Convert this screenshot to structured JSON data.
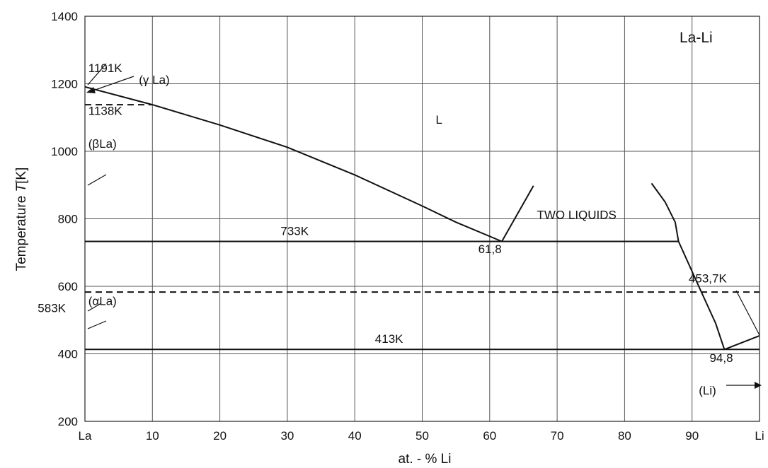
{
  "chart_data": {
    "type": "line",
    "title": "La-Li",
    "xlabel": "at. - % Li",
    "ylabel": "Temperature T[K]",
    "ylabel_prefix": "Temperature ",
    "ylabel_var": "T",
    "ylabel_unit": "[K]",
    "xlim": [
      0,
      100
    ],
    "ylim": [
      200,
      1400
    ],
    "grid": true,
    "x_ticks": [
      {
        "value": 0,
        "label": "La"
      },
      {
        "value": 10,
        "label": "10"
      },
      {
        "value": 20,
        "label": "20"
      },
      {
        "value": 30,
        "label": "30"
      },
      {
        "value": 40,
        "label": "40"
      },
      {
        "value": 50,
        "label": "50"
      },
      {
        "value": 60,
        "label": "60"
      },
      {
        "value": 70,
        "label": "70"
      },
      {
        "value": 80,
        "label": "80"
      },
      {
        "value": 90,
        "label": "90"
      },
      {
        "value": 100,
        "label": "Li"
      }
    ],
    "y_ticks": [
      {
        "value": 200,
        "label": "200"
      },
      {
        "value": 400,
        "label": "400"
      },
      {
        "value": 600,
        "label": "600"
      },
      {
        "value": 800,
        "label": "800"
      },
      {
        "value": 1000,
        "label": "1000"
      },
      {
        "value": 1200,
        "label": "1200"
      },
      {
        "value": 1400,
        "label": "1400"
      }
    ],
    "lines": [
      {
        "id": "liquidus-la-side",
        "style": "solid",
        "points": [
          [
            0,
            1191
          ],
          [
            10,
            1138
          ],
          [
            20,
            1078
          ],
          [
            30,
            1012
          ],
          [
            40,
            930
          ],
          [
            50,
            838
          ],
          [
            55,
            790
          ],
          [
            61.8,
            733
          ]
        ]
      },
      {
        "id": "miscibility-gap-left",
        "style": "solid",
        "points": [
          [
            61.8,
            733
          ],
          [
            66.5,
            898
          ]
        ]
      },
      {
        "id": "miscibility-gap-right",
        "style": "solid",
        "points": [
          [
            84,
            905
          ],
          [
            86,
            850
          ],
          [
            87.5,
            790
          ],
          [
            88,
            733
          ]
        ]
      },
      {
        "id": "liquidus-li-side",
        "style": "solid",
        "points": [
          [
            88,
            733
          ],
          [
            91,
            600
          ],
          [
            93.5,
            490
          ],
          [
            94.8,
            413
          ]
        ]
      },
      {
        "id": "li-liquidus",
        "style": "solid",
        "points": [
          [
            94.8,
            413
          ],
          [
            100,
            453.7
          ]
        ]
      },
      {
        "id": "monotectic-733K",
        "style": "solid",
        "points": [
          [
            0,
            733
          ],
          [
            88,
            733
          ]
        ]
      },
      {
        "id": "eutectic-413K",
        "style": "solid",
        "points": [
          [
            0,
            413
          ],
          [
            100,
            413
          ]
        ]
      },
      {
        "id": "transition-1138K",
        "style": "dashed",
        "points": [
          [
            0,
            1138
          ],
          [
            10,
            1138
          ]
        ]
      },
      {
        "id": "transition-583K",
        "style": "dashed",
        "points": [
          [
            0,
            583
          ],
          [
            100,
            583
          ]
        ]
      }
    ],
    "annotations": [
      {
        "id": "label-1191K",
        "text": "1191K",
        "x": 0.5,
        "y": 1235
      },
      {
        "id": "label-gamma-la",
        "text": "(γ La)",
        "x": 8,
        "y": 1200
      },
      {
        "id": "label-1138K",
        "text": "1138K",
        "x": 0.5,
        "y": 1108
      },
      {
        "id": "label-L",
        "text": "L",
        "x": 52,
        "y": 1082
      },
      {
        "id": "label-beta-la",
        "text": "(βLa)",
        "x": 0.5,
        "y": 1010
      },
      {
        "id": "label-two-liquids",
        "text": "TWO LIQUIDS",
        "x": 67,
        "y": 800
      },
      {
        "id": "label-733K",
        "text": "733K",
        "x": 29,
        "y": 752
      },
      {
        "id": "label-61-8",
        "text": "61,8",
        "x": 58.3,
        "y": 698
      },
      {
        "id": "label-453-7K",
        "text": "453,7K",
        "x": 89.5,
        "y": 612
      },
      {
        "id": "label-583K",
        "text": "583K",
        "x": -7,
        "y": 524
      },
      {
        "id": "label-alpha-la",
        "text": "(αLa)",
        "x": 0.5,
        "y": 544
      },
      {
        "id": "label-413K",
        "text": "413K",
        "x": 43,
        "y": 432
      },
      {
        "id": "label-94-8",
        "text": "94,8",
        "x": 92.6,
        "y": 376
      },
      {
        "id": "label-li-phase",
        "text": "(Li)",
        "x": 91,
        "y": 280
      }
    ]
  }
}
